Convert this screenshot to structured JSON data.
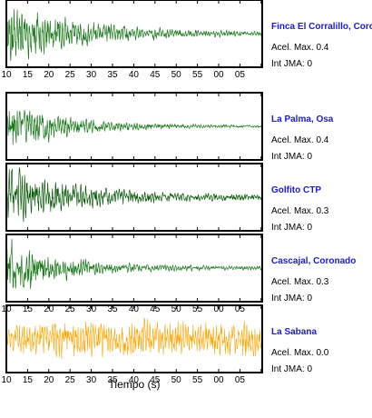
{
  "chart_data": {
    "type": "line",
    "xlabel": "Tiempo (s)",
    "tick_labels": [
      "10",
      "15",
      "20",
      "25",
      "30",
      "35",
      "40",
      "45",
      "50",
      "55",
      "00",
      "05"
    ],
    "series": [
      {
        "name": "Finca El Corralillo, Coronado",
        "peak_label": "Acel. Max. 0.4",
        "intensity_label": "Int JMA: 0",
        "color": "#1e7a1e",
        "amplitude": 0.4,
        "decay": 0.55,
        "noise": 0.03,
        "seed": 11,
        "show_ticks": true
      },
      {
        "name": "La Palma, Osa",
        "peak_label": "Acel. Max. 0.4",
        "intensity_label": "Int JMA: 0",
        "color": "#1e7a1e",
        "amplitude": 0.4,
        "decay": 0.35,
        "noise": 0.03,
        "seed": 23,
        "show_ticks": false
      },
      {
        "name": "Golfito CTP",
        "peak_label": "Acel. Max. 0.3",
        "intensity_label": "Int JMA: 0",
        "color": "#0d5c0d",
        "amplitude": 0.3,
        "decay": 0.45,
        "noise": 0.07,
        "seed": 37,
        "show_ticks": false
      },
      {
        "name": "Cascajal, Coronado",
        "peak_label": "Acel. Max. 0.3",
        "intensity_label": "Int JMA: 0",
        "color": "#1e7a1e",
        "amplitude": 0.3,
        "decay": 0.35,
        "noise": 0.05,
        "seed": 51,
        "show_ticks": true
      },
      {
        "name": "La Sabana",
        "peak_label": "Acel. Max. 0.0",
        "intensity_label": "Int JMA: 0",
        "color": "#ffa500",
        "amplitude": 0.0,
        "decay": 0.0,
        "noise": 0.6,
        "seed": 73,
        "show_ticks": true
      }
    ]
  }
}
